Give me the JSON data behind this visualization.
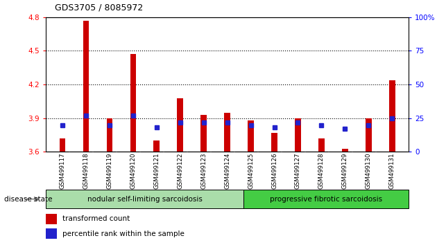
{
  "title": "GDS3705 / 8085972",
  "samples": [
    "GSM499117",
    "GSM499118",
    "GSM499119",
    "GSM499120",
    "GSM499121",
    "GSM499122",
    "GSM499123",
    "GSM499124",
    "GSM499125",
    "GSM499126",
    "GSM499127",
    "GSM499128",
    "GSM499129",
    "GSM499130",
    "GSM499131"
  ],
  "transformed_count": [
    3.72,
    4.77,
    3.9,
    4.47,
    3.7,
    4.08,
    3.93,
    3.95,
    3.88,
    3.77,
    3.9,
    3.72,
    3.63,
    3.9,
    4.24
  ],
  "percentile_rank": [
    20,
    27,
    20,
    27,
    18,
    22,
    22,
    22,
    20,
    18,
    22,
    20,
    17,
    20,
    25
  ],
  "ylim_left": [
    3.6,
    4.8
  ],
  "ylim_right": [
    0,
    100
  ],
  "yticks_left": [
    3.6,
    3.9,
    4.2,
    4.5,
    4.8
  ],
  "yticks_right": [
    0,
    25,
    50,
    75,
    100
  ],
  "bar_color": "#cc0000",
  "marker_color": "#2222cc",
  "group1_label": "nodular self-limiting sarcoidosis",
  "group2_label": "progressive fibrotic sarcoidosis",
  "group1_count": 8,
  "group2_count": 7,
  "group1_color": "#aaddaa",
  "group2_color": "#44cc44",
  "label_bg_color": "#cccccc",
  "disease_state_label": "disease state",
  "legend1": "transformed count",
  "legend2": "percentile rank within the sample",
  "bar_width": 0.25
}
